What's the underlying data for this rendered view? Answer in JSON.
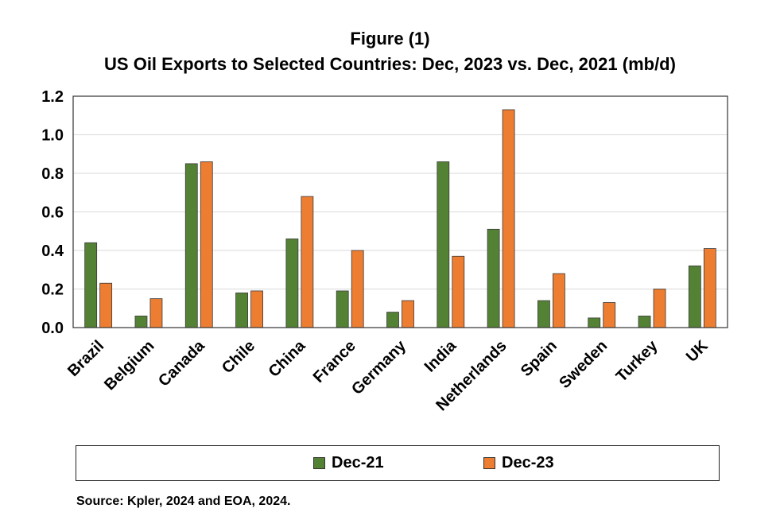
{
  "figure_label": "Figure (1)",
  "source": "Source: Kpler, 2024 and EOA, 2024.",
  "colors": {
    "Dec-21": "#548235",
    "Dec-23": "#ED7D31"
  },
  "chart_data": {
    "type": "bar",
    "title": "US Oil Exports to Selected Countries: Dec, 2023 vs. Dec, 2021 (mb/d)",
    "xlabel": "",
    "ylabel": "",
    "categories": [
      "Brazil",
      "Belgium",
      "Canada",
      "Chile",
      "China",
      "France",
      "Germany",
      "India",
      "Netherlands",
      "Spain",
      "Sweden",
      "Turkey",
      "UK"
    ],
    "series": [
      {
        "name": "Dec-21",
        "values": [
          0.44,
          0.06,
          0.85,
          0.18,
          0.46,
          0.19,
          0.08,
          0.86,
          0.51,
          0.14,
          0.05,
          0.06,
          0.32
        ]
      },
      {
        "name": "Dec-23",
        "values": [
          0.23,
          0.15,
          0.86,
          0.19,
          0.68,
          0.4,
          0.14,
          0.37,
          1.13,
          0.28,
          0.13,
          0.2,
          0.41
        ]
      }
    ],
    "ylim": [
      0,
      1.2
    ],
    "yticks": [
      "0.0",
      "0.2",
      "0.4",
      "0.6",
      "0.8",
      "1.0",
      "1.2"
    ],
    "grid": true,
    "legend": "bottom"
  }
}
